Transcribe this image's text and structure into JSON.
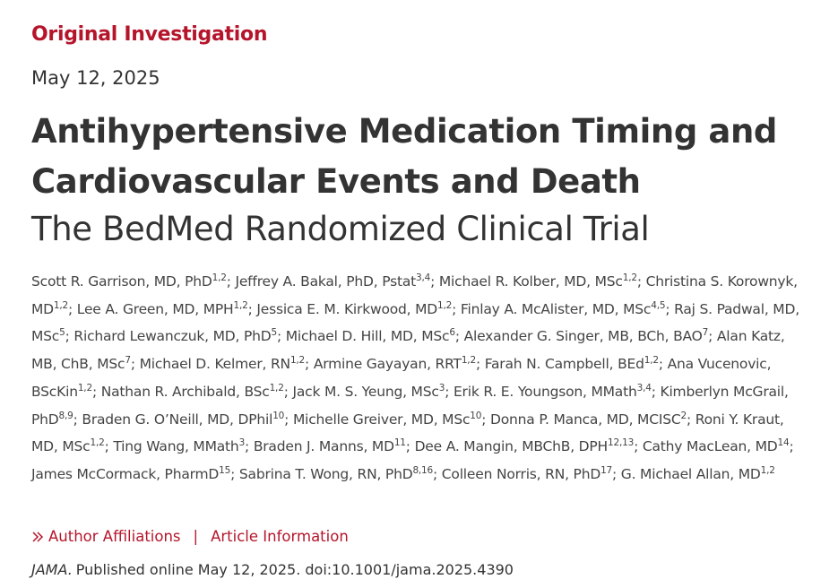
{
  "header": {
    "kicker": "Original Investigation",
    "date": "May 12, 2025",
    "title_lines": [
      "Antihypertensive Medication Timing and",
      "Cardiovascular Events and Death"
    ],
    "subtitle": "The BedMed Randomized Clinical Trial"
  },
  "authors": {
    "separator": ";",
    "list": [
      {
        "name": "Scott R. Garrison, MD, PhD",
        "sup": "1,2"
      },
      {
        "name": "Jeffrey A. Bakal, PhD, Pstat",
        "sup": "3,4"
      },
      {
        "name": "Michael R. Kolber, MD, MSc",
        "sup": "1,2"
      },
      {
        "name": "Christina S. Korownyk, MD",
        "sup": "1,2"
      },
      {
        "name": "Lee A. Green, MD, MPH",
        "sup": "1,2"
      },
      {
        "name": "Jessica E. M. Kirkwood, MD",
        "sup": "1,2"
      },
      {
        "name": "Finlay A. McAlister, MD, MSc",
        "sup": "4,5"
      },
      {
        "name": "Raj S. Padwal, MD, MSc",
        "sup": "5"
      },
      {
        "name": "Richard Lewanczuk, MD, PhD",
        "sup": "5"
      },
      {
        "name": "Michael D. Hill, MD, MSc",
        "sup": "6"
      },
      {
        "name": "Alexander G. Singer, MB, BCh, BAO",
        "sup": "7"
      },
      {
        "name": "Alan Katz, MB, ChB, MSc",
        "sup": "7"
      },
      {
        "name": "Michael D. Kelmer, RN",
        "sup": "1,2"
      },
      {
        "name": "Armine Gayayan, RRT",
        "sup": "1,2"
      },
      {
        "name": "Farah N. Campbell, BEd",
        "sup": "1,2"
      },
      {
        "name": "Ana Vucenovic, BScKin",
        "sup": "1,2"
      },
      {
        "name": "Nathan R. Archibald, BSc",
        "sup": "1,2"
      },
      {
        "name": "Jack M. S. Yeung, MSc",
        "sup": "3"
      },
      {
        "name": "Erik R. E. Youngson, MMath",
        "sup": "3,4"
      },
      {
        "name": "Kimberlyn McGrail, PhD",
        "sup": "8,9"
      },
      {
        "name": "Braden G. O’Neill, MD, DPhil",
        "sup": "10"
      },
      {
        "name": "Michelle Greiver, MD, MSc",
        "sup": "10"
      },
      {
        "name": "Donna P. Manca, MD, MCISC",
        "sup": "2"
      },
      {
        "name": "Roni Y. Kraut, MD, MSc",
        "sup": "1,2"
      },
      {
        "name": "Ting Wang, MMath",
        "sup": "3"
      },
      {
        "name": "Braden J. Manns, MD",
        "sup": "11"
      },
      {
        "name": "Dee A. Mangin, MBChB, DPH",
        "sup": "12,13"
      },
      {
        "name": "Cathy MacLean, MD",
        "sup": "14"
      },
      {
        "name": "James McCormack, PharmD",
        "sup": "15"
      },
      {
        "name": "Sabrina T. Wong, RN, PhD",
        "sup": "8,16"
      },
      {
        "name": "Colleen Norris, RN, PhD",
        "sup": "17"
      },
      {
        "name": "G. Michael Allan, MD",
        "sup": "1,2"
      }
    ]
  },
  "links": {
    "items": [
      "Author Affiliations",
      "Article Information"
    ],
    "separator": "|"
  },
  "citation": {
    "journal": "JAMA.",
    "text": "Published online May 12, 2025. doi:10.1001/jama.2025.4390"
  }
}
